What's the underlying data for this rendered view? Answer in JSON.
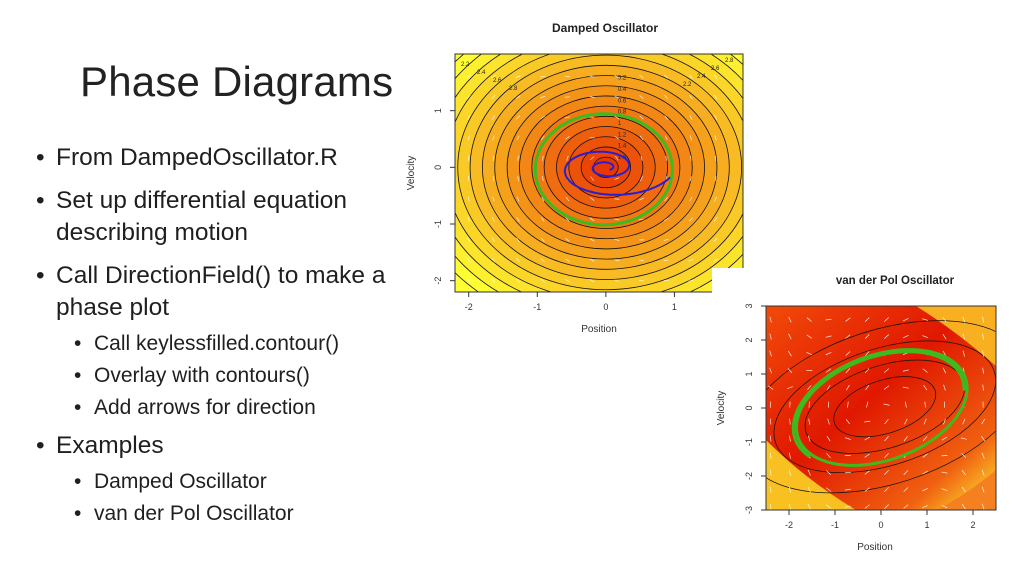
{
  "slide": {
    "title": "Phase Diagrams",
    "bullets": [
      {
        "text": "From DampedOscillator.R"
      },
      {
        "text": "Set up differential equation describing motion"
      },
      {
        "text": "Call DirectionField() to make a phase plot",
        "subitems": [
          "Call keylessfilled.contour()",
          "Overlay with contours()",
          "Add arrows for direction"
        ]
      },
      {
        "text": "Examples",
        "subitems": [
          "Damped Oscillator",
          "van der Pol Oscillator"
        ]
      }
    ]
  },
  "chart_data": [
    {
      "type": "heatmap",
      "title": "Damped Oscillator",
      "xlabel": "Position",
      "ylabel": "Velocity",
      "xticks": [
        "-2",
        "-1",
        "0",
        "1"
      ],
      "yticks": [
        "-2",
        "-1",
        "0",
        "1"
      ],
      "xlim": [
        -2.2,
        2.0
      ],
      "ylim": [
        -2.2,
        2.0
      ],
      "contour_labels": [
        "0.2",
        "0.4",
        "0.6",
        "0.8",
        "1",
        "1.2",
        "1.4",
        "1.6",
        "2.2",
        "2.4",
        "2.6",
        "2.8"
      ],
      "color_low": "#e82a00",
      "color_high": "#ffff33"
    },
    {
      "type": "heatmap",
      "title": "van der Pol Oscillator",
      "xlabel": "Position",
      "ylabel": "Velocity",
      "xticks": [
        "-2",
        "-1",
        "0",
        "1",
        "2"
      ],
      "yticks": [
        "-3",
        "-2",
        "-1",
        "0",
        "1",
        "2",
        "3"
      ],
      "xlim": [
        -2.5,
        2.5
      ],
      "ylim": [
        -3.0,
        3.0
      ],
      "color_low": "#e01800",
      "color_high": "#ffee33"
    }
  ]
}
